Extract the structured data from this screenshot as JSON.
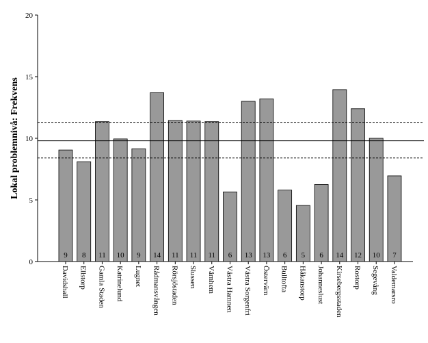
{
  "chart_data": {
    "type": "bar",
    "y_label": "Lokal problemnivå: Frekvens",
    "categories": [
      "Davidshall",
      "Ellstorp",
      "Gamla Staden",
      "Katrinelund",
      "Lugnet",
      "Rådmansvången",
      "Rörsjöstaden",
      "Slussen",
      "Värnhem",
      "Västra Hamnen",
      "Västra Sorgenfri",
      "Östervärn",
      "Bulltofta",
      "Håkanstorp",
      "Johanneslust",
      "Kirsebergsstaden",
      "Rostorp",
      "Segevång",
      "Valdemarsro"
    ],
    "values": [
      9.05,
      8.1,
      11.35,
      9.95,
      9.15,
      13.7,
      11.45,
      11.4,
      11.35,
      5.65,
      13.0,
      13.2,
      5.8,
      4.55,
      6.25,
      13.95,
      12.4,
      10.0,
      6.95
    ],
    "value_labels": [
      "9",
      "8",
      "11",
      "10",
      "9",
      "14",
      "11",
      "11",
      "11",
      "6",
      "13",
      "13",
      "6",
      "5",
      "6",
      "14",
      "12",
      "10",
      "7"
    ],
    "color": "#999999",
    "ylim": [
      0,
      20
    ],
    "yticks": [
      0,
      5,
      10,
      15,
      20
    ],
    "mean_line": 9.8,
    "limit_lines": [
      8.4,
      11.3
    ]
  }
}
